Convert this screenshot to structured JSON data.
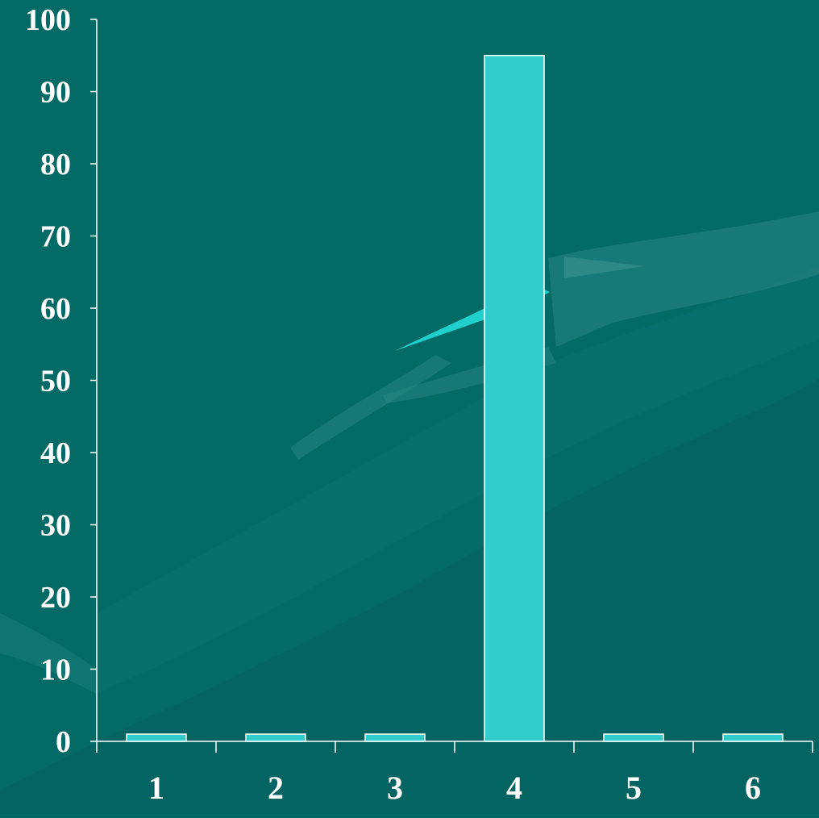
{
  "background_color": "#046a66",
  "chart_data": {
    "type": "bar",
    "categories": [
      "1",
      "2",
      "3",
      "4",
      "5",
      "6"
    ],
    "values": [
      1,
      1,
      1,
      95,
      1,
      1
    ],
    "title": "",
    "xlabel": "",
    "ylabel": "",
    "ylim": [
      0,
      100
    ],
    "yticks": [
      "0",
      "10",
      "20",
      "30",
      "40",
      "50",
      "60",
      "70",
      "80",
      "90",
      "100"
    ],
    "grid": false,
    "legend": "none",
    "colors": {
      "bar_fill": "#33cccc",
      "bar_stroke": "#ffffff",
      "axis": "#ffffff",
      "text": "#ffffff"
    }
  }
}
